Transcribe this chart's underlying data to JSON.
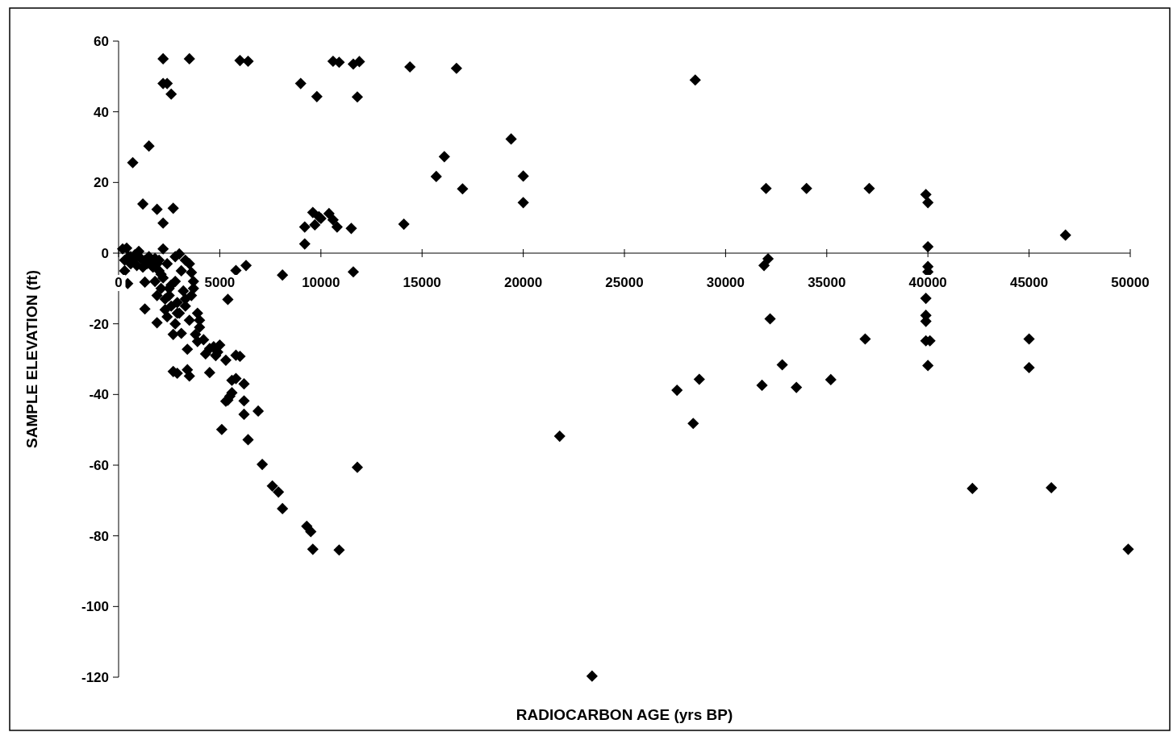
{
  "chart_data": {
    "type": "scatter",
    "xlabel": "RADIOCARBON AGE (yrs BP)",
    "ylabel": "SAMPLE  ELEVATION (ft)",
    "xlim": [
      0,
      50000
    ],
    "ylim": [
      -120,
      60
    ],
    "xticks": [
      0,
      5000,
      10000,
      15000,
      20000,
      25000,
      30000,
      35000,
      40000,
      45000,
      50000
    ],
    "yticks": [
      -120,
      -100,
      -80,
      -60,
      -40,
      -20,
      0,
      20,
      40,
      60
    ],
    "grid": false,
    "marker": "diamond",
    "series": [
      {
        "color": "#000000",
        "x": [
          2200,
          3500,
          2200,
          2400,
          2600,
          6000,
          6400,
          9000,
          9800,
          10600,
          10900,
          11600,
          11900,
          11800,
          14400,
          16700,
          28500,
          19400,
          16100,
          15700,
          17000,
          20000,
          20000,
          14100,
          1500,
          700,
          1200,
          1900,
          2700,
          2200,
          2200,
          9200,
          9200,
          9600,
          9700,
          10000,
          10400,
          10600,
          10800,
          9900,
          11500,
          11600,
          32000,
          34000,
          37100,
          39900,
          40000,
          40000,
          46800,
          31900,
          32100,
          32200,
          32800,
          33500,
          35200,
          36900,
          31800,
          27600,
          28700,
          28400,
          21800,
          23400,
          40000,
          40000,
          39900,
          39900,
          39900,
          39900,
          40100,
          40000,
          42200,
          45000,
          45000,
          46100,
          49900,
          11800,
          10900,
          9600,
          9300,
          9500,
          8100,
          7900,
          7600,
          7100,
          6900,
          6400,
          6200,
          6200,
          6200,
          6000,
          5800,
          5800,
          5600,
          5400,
          5600,
          5500,
          5300,
          5100,
          5300,
          5400,
          5800,
          6300,
          8100,
          200,
          450,
          300,
          400,
          500,
          600,
          700,
          800,
          900,
          1000,
          1100,
          1200,
          1300,
          1400,
          1500,
          1600,
          1700,
          1800,
          1900,
          2000,
          600,
          300,
          1300,
          1300,
          1800,
          1900,
          1900,
          2100,
          2200,
          2300,
          2300,
          2400,
          2500,
          2600,
          2600,
          2700,
          2700,
          2800,
          2900,
          2900,
          3000,
          3000,
          3100,
          3100,
          3200,
          3300,
          3400,
          3400,
          3500,
          3500,
          3600,
          3600,
          3500,
          3700,
          3800,
          3900,
          3900,
          4000,
          4000,
          4200,
          4300,
          4500,
          4500,
          4700,
          4800,
          4900,
          5000,
          2000,
          2100,
          2400,
          2800,
          3300,
          2500,
          3300,
          3700,
          2900,
          2800
        ],
        "values": [
          55,
          55,
          48,
          48,
          45,
          54.5,
          54.3,
          48,
          44.3,
          54.3,
          54,
          53.5,
          54.2,
          44.2,
          52.7,
          52.3,
          49,
          32.3,
          27.3,
          21.7,
          18.2,
          21.8,
          14.3,
          8.2,
          30.3,
          25.6,
          13.9,
          12.4,
          12.7,
          8.5,
          1.2,
          7.4,
          2.6,
          11.5,
          8,
          9.8,
          11.2,
          9.4,
          7.4,
          10.3,
          7,
          -5.3,
          18.3,
          18.3,
          18.3,
          16.6,
          14.3,
          1.8,
          5.1,
          -3.5,
          -1.6,
          -18.6,
          -31.6,
          -38,
          -35.8,
          -24.3,
          -37.4,
          -38.8,
          -35.7,
          -48.2,
          -51.8,
          -119.7,
          -3.8,
          -5.3,
          -12.8,
          -17.6,
          -19.3,
          -24.8,
          -24.8,
          -31.8,
          -66.6,
          -24.3,
          -32.4,
          -66.4,
          -83.8,
          -60.6,
          -84,
          -83.8,
          -77.3,
          -78.8,
          -72.3,
          -67.6,
          -65.9,
          -59.8,
          -44.7,
          -52.8,
          -45.6,
          -41.8,
          -37,
          -29.2,
          -28.9,
          -35.5,
          -36,
          -41.6,
          -39.5,
          -40.5,
          -41.9,
          -49.9,
          -30.3,
          -13.1,
          -4.9,
          -3.5,
          -6.2,
          1.2,
          -8.6,
          -5,
          1.4,
          -1,
          -3,
          -2,
          -0.5,
          -3.5,
          0.5,
          -1.5,
          -4,
          -2,
          -3,
          -1,
          -2.5,
          -4,
          -1.5,
          -3,
          -5,
          -1,
          -2,
          -8.2,
          -15.8,
          -8,
          -12,
          -19.7,
          -10,
          -7,
          -13,
          -16,
          -18,
          -12,
          -9,
          -15,
          -23,
          -33.5,
          -20,
          -14,
          -34,
          -17,
          -0.2,
          -5,
          -22.7,
          -10.7,
          -15,
          -27.2,
          -33,
          -34.8,
          -19,
          -12,
          -5.5,
          -3,
          -8,
          -23,
          -17,
          -25,
          -19,
          -21,
          -24.5,
          -28.5,
          -27,
          -33.8,
          -26.5,
          -29,
          -28,
          -26,
          -2,
          -6,
          -3,
          -1,
          -2,
          -10,
          -13,
          -10,
          -17,
          -8
        ]
      }
    ]
  }
}
